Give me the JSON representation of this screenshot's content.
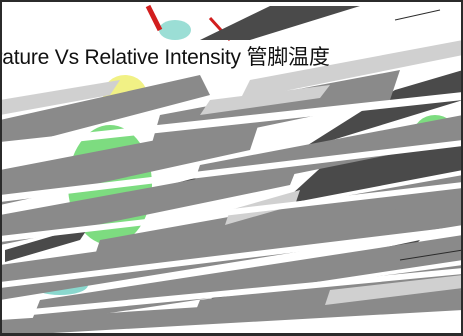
{
  "title": {
    "text": "erature Vs Relative Intensity  管脚温度"
  },
  "colors": {
    "background": "#ffffff",
    "streak_gray": "#8a8a8a",
    "streak_dark": "#4a4a4a",
    "streak_light": "#d0d0d0",
    "accent_green": "#66d66a",
    "accent_yellow": "#f0f078",
    "accent_teal": "#59c8b9",
    "accent_red": "#d21e1e",
    "title_text": "#111111"
  }
}
